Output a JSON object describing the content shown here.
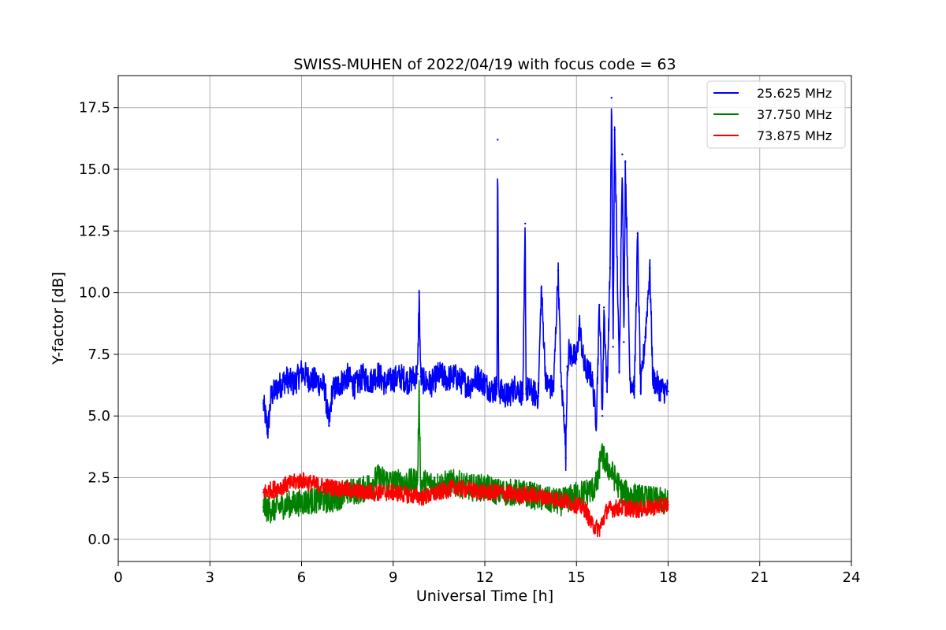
{
  "chart_data": {
    "type": "line",
    "title": "SWISS-MUHEN of 2022/04/19 with focus code = 63",
    "xlabel": "Universal Time [h]",
    "ylabel": "Y-factor [dB]",
    "xlim": [
      0,
      24
    ],
    "ylim": [
      -0.9,
      18.8
    ],
    "xticks": [
      0,
      3,
      6,
      9,
      12,
      15,
      18,
      21,
      24
    ],
    "xtick_labels": [
      "0",
      "3",
      "6",
      "9",
      "12",
      "15",
      "18",
      "21",
      "24"
    ],
    "yticks": [
      0,
      2.5,
      5,
      7.5,
      10,
      12.5,
      15,
      17.5
    ],
    "ytick_labels": [
      "0.0",
      "2.5",
      "5.0",
      "7.5",
      "10.0",
      "12.5",
      "15.0",
      "17.5"
    ],
    "grid": true,
    "legend_position": "top-right",
    "series": [
      {
        "name": "25.625 MHz",
        "color": "#0000ff",
        "x": [
          4.75,
          4.9,
          5.0,
          5.25,
          5.5,
          5.75,
          6.0,
          6.25,
          6.5,
          6.75,
          6.9,
          7.0,
          7.25,
          7.5,
          7.75,
          8.0,
          8.25,
          8.5,
          8.75,
          9.0,
          9.25,
          9.5,
          9.8,
          9.85,
          9.9,
          10.0,
          10.25,
          10.5,
          10.75,
          11.0,
          11.25,
          11.5,
          11.75,
          12.0,
          12.25,
          12.4,
          12.42,
          12.45,
          12.5,
          12.75,
          13.0,
          13.25,
          13.32,
          13.35,
          13.5,
          13.75,
          13.85,
          14.0,
          14.25,
          14.4,
          14.5,
          14.6,
          14.65,
          14.7,
          14.75,
          15.0,
          15.1,
          15.25,
          15.5,
          15.65,
          15.75,
          15.85,
          15.9,
          16.0,
          16.1,
          16.15,
          16.2,
          16.25,
          16.4,
          16.5,
          16.55,
          16.6,
          16.75,
          16.9,
          17.0,
          17.1,
          17.25,
          17.4,
          17.5,
          17.75,
          18.0
        ],
        "values": [
          5.5,
          4.4,
          5.8,
          6.2,
          6.5,
          6.3,
          6.8,
          6.5,
          6.4,
          6.2,
          4.6,
          6.0,
          6.3,
          6.6,
          6.2,
          6.6,
          6.4,
          6.7,
          6.3,
          6.5,
          6.6,
          6.4,
          6.7,
          10.0,
          6.6,
          6.4,
          6.3,
          6.7,
          6.5,
          6.6,
          6.4,
          6.2,
          6.6,
          6.3,
          6.0,
          6.2,
          16.2,
          6.3,
          6.0,
          5.8,
          6.2,
          5.9,
          12.8,
          6.1,
          6.0,
          5.8,
          10.2,
          6.3,
          6.1,
          10.9,
          6.2,
          5.0,
          3.3,
          7.0,
          7.6,
          7.3,
          8.7,
          7.0,
          6.6,
          4.8,
          9.5,
          5.0,
          9.4,
          6.0,
          11.0,
          17.9,
          7.8,
          16.6,
          6.8,
          15.6,
          8.0,
          15.3,
          6.5,
          6.2,
          12.4,
          6.0,
          8.2,
          11.0,
          6.5,
          6.1,
          6.0
        ]
      },
      {
        "name": "37.750 MHz",
        "color": "#008000",
        "x": [
          4.75,
          5.0,
          5.5,
          6.0,
          6.5,
          7.0,
          7.5,
          8.0,
          8.4,
          8.5,
          9.0,
          9.5,
          9.8,
          9.85,
          9.9,
          10.0,
          10.5,
          11.0,
          11.5,
          12.0,
          12.5,
          13.0,
          13.5,
          14.0,
          14.5,
          15.0,
          15.5,
          15.7,
          15.8,
          16.0,
          16.2,
          16.5,
          17.0,
          17.5,
          18.0
        ],
        "values": [
          1.3,
          1.2,
          1.4,
          1.5,
          1.6,
          1.6,
          1.9,
          2.0,
          2.4,
          2.5,
          2.3,
          2.3,
          2.4,
          6.0,
          2.2,
          2.3,
          2.2,
          2.3,
          2.1,
          2.1,
          1.9,
          1.9,
          1.8,
          1.6,
          1.5,
          1.8,
          2.0,
          2.3,
          3.5,
          3.0,
          2.6,
          1.9,
          1.7,
          1.6,
          1.5
        ]
      },
      {
        "name": "73.875 MHz",
        "color": "#ff0000",
        "x": [
          4.75,
          5.0,
          5.5,
          6.0,
          6.5,
          7.0,
          7.5,
          8.0,
          8.5,
          9.0,
          9.5,
          10.0,
          10.5,
          11.0,
          11.5,
          12.0,
          12.5,
          13.0,
          13.5,
          14.0,
          14.5,
          15.0,
          15.3,
          15.5,
          15.75,
          16.0,
          16.5,
          17.0,
          17.5,
          18.0
        ],
        "values": [
          1.9,
          2.0,
          2.2,
          2.4,
          2.2,
          2.1,
          2.0,
          1.9,
          1.9,
          1.9,
          1.8,
          1.7,
          1.9,
          2.1,
          2.0,
          1.9,
          1.9,
          1.8,
          1.8,
          1.7,
          1.6,
          1.4,
          1.2,
          0.6,
          0.4,
          1.2,
          1.3,
          1.2,
          1.3,
          1.4
        ]
      }
    ]
  }
}
